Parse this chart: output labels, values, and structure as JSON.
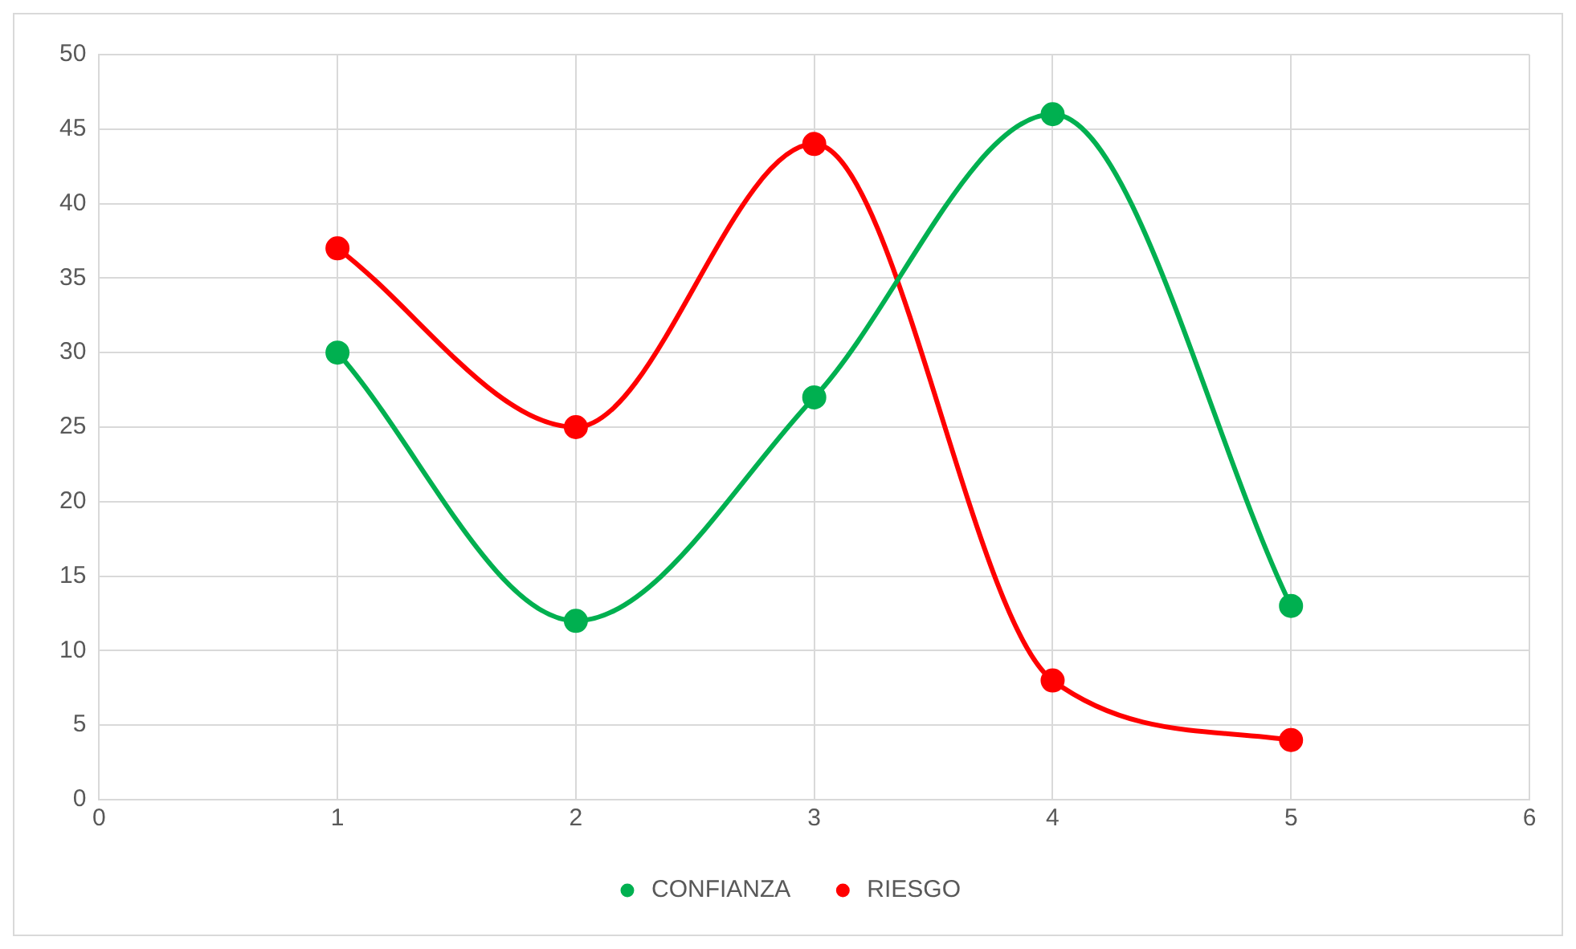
{
  "chart_data": {
    "type": "line",
    "x": [
      1,
      2,
      3,
      4,
      5
    ],
    "series": [
      {
        "name": "CONFIANZA",
        "color": "#00b050",
        "values": [
          30,
          12,
          27,
          46,
          13
        ]
      },
      {
        "name": "RIESGO",
        "color": "#ff0000",
        "values": [
          37,
          25,
          44,
          8,
          4
        ]
      }
    ],
    "xlim": [
      0,
      6
    ],
    "xticks": [
      0,
      1,
      2,
      3,
      4,
      5,
      6
    ],
    "ylim": [
      0,
      50
    ],
    "yticks": [
      0,
      5,
      10,
      15,
      20,
      25,
      30,
      35,
      40,
      45,
      50
    ],
    "grid": true,
    "legend": "bottom",
    "marker": "circle",
    "line_style": "solid"
  }
}
